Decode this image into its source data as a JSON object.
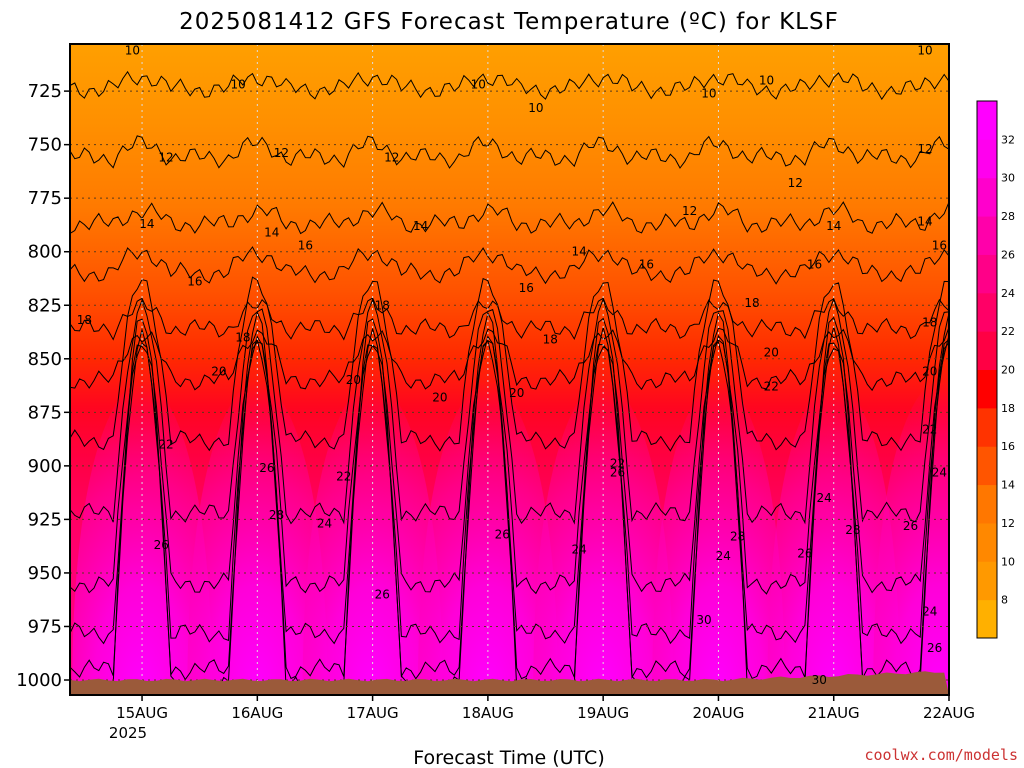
{
  "chart_data": {
    "type": "heatmap",
    "title": "2025081412 GFS Forecast Temperature (ºC) for KLSF",
    "xlabel": "Forecast Time (UTC)",
    "ylabel": "",
    "credit": "coolwx.com/models",
    "x_ticks": [
      "15AUG",
      "16AUG",
      "17AUG",
      "18AUG",
      "19AUG",
      "20AUG",
      "21AUG",
      "22AUG"
    ],
    "x_year_label": "2025",
    "x_range_hours": [
      -15,
      168
    ],
    "y_ticks": [
      725,
      750,
      775,
      800,
      825,
      850,
      875,
      900,
      925,
      950,
      975,
      1000
    ],
    "y_range_hPa": [
      703,
      1007
    ],
    "y_scale": "pressure, inverted",
    "grid": true,
    "colorbar": {
      "ticks": [
        8,
        10,
        12,
        14,
        16,
        18,
        20,
        22,
        24,
        26,
        28,
        30,
        32
      ],
      "colors": [
        "#ffb000",
        "#ff9900",
        "#ff8800",
        "#ff7700",
        "#ff5500",
        "#ff3300",
        "#ff0000",
        "#ff0044",
        "#ff0066",
        "#ff0088",
        "#ff00aa",
        "#ff00cc",
        "#ff00ee",
        "#ff00ff"
      ],
      "placement": "right"
    },
    "contour_levels": [
      10,
      12,
      14,
      16,
      18,
      20,
      22,
      24,
      26,
      28,
      30,
      32
    ],
    "contour_labels": [
      {
        "text": "10",
        "t": -2,
        "p": 706
      },
      {
        "text": "10",
        "t": 20,
        "p": 722
      },
      {
        "text": "10",
        "t": 70,
        "p": 722
      },
      {
        "text": "10",
        "t": 82,
        "p": 733
      },
      {
        "text": "10",
        "t": 118,
        "p": 726
      },
      {
        "text": "10",
        "t": 130,
        "p": 720
      },
      {
        "text": "10",
        "t": 163,
        "p": 706
      },
      {
        "text": "12",
        "t": 5,
        "p": 756
      },
      {
        "text": "12",
        "t": 29,
        "p": 754
      },
      {
        "text": "12",
        "t": 52,
        "p": 756
      },
      {
        "text": "12",
        "t": 114,
        "p": 781
      },
      {
        "text": "12",
        "t": 136,
        "p": 768
      },
      {
        "text": "12",
        "t": 163,
        "p": 752
      },
      {
        "text": "14",
        "t": 1,
        "p": 787
      },
      {
        "text": "14",
        "t": 27,
        "p": 791
      },
      {
        "text": "14",
        "t": 58,
        "p": 788
      },
      {
        "text": "14",
        "t": 91,
        "p": 800
      },
      {
        "text": "14",
        "t": 144,
        "p": 788
      },
      {
        "text": "14",
        "t": 163,
        "p": 786
      },
      {
        "text": "16",
        "t": 11,
        "p": 814
      },
      {
        "text": "16",
        "t": 34,
        "p": 797
      },
      {
        "text": "16",
        "t": 80,
        "p": 817
      },
      {
        "text": "16",
        "t": 105,
        "p": 806
      },
      {
        "text": "16",
        "t": 140,
        "p": 806
      },
      {
        "text": "16",
        "t": 166,
        "p": 797
      },
      {
        "text": "18",
        "t": -12,
        "p": 832
      },
      {
        "text": "18",
        "t": 21,
        "p": 840
      },
      {
        "text": "18",
        "t": 50,
        "p": 825
      },
      {
        "text": "18",
        "t": 85,
        "p": 841
      },
      {
        "text": "18",
        "t": 127,
        "p": 824
      },
      {
        "text": "18",
        "t": 164,
        "p": 833
      },
      {
        "text": "20",
        "t": 16,
        "p": 856
      },
      {
        "text": "20",
        "t": 44,
        "p": 860
      },
      {
        "text": "20",
        "t": 62,
        "p": 868
      },
      {
        "text": "20",
        "t": 78,
        "p": 866
      },
      {
        "text": "20",
        "t": 131,
        "p": 847
      },
      {
        "text": "20",
        "t": 164,
        "p": 856
      },
      {
        "text": "22",
        "t": 5,
        "p": 890
      },
      {
        "text": "22",
        "t": 42,
        "p": 905
      },
      {
        "text": "22",
        "t": 99,
        "p": 899
      },
      {
        "text": "22",
        "t": 131,
        "p": 863
      },
      {
        "text": "22",
        "t": 164,
        "p": 883
      },
      {
        "text": "24",
        "t": 38,
        "p": 927
      },
      {
        "text": "24",
        "t": 91,
        "p": 939
      },
      {
        "text": "24",
        "t": 121,
        "p": 942
      },
      {
        "text": "24",
        "t": 142,
        "p": 915
      },
      {
        "text": "24",
        "t": 166,
        "p": 903
      },
      {
        "text": "24",
        "t": 164,
        "p": 968
      },
      {
        "text": "26",
        "t": 4,
        "p": 937
      },
      {
        "text": "26",
        "t": 26,
        "p": 901
      },
      {
        "text": "26",
        "t": 50,
        "p": 960
      },
      {
        "text": "26",
        "t": 75,
        "p": 932
      },
      {
        "text": "26",
        "t": 99,
        "p": 903
      },
      {
        "text": "26",
        "t": 138,
        "p": 941
      },
      {
        "text": "26",
        "t": 160,
        "p": 928
      },
      {
        "text": "26",
        "t": 165,
        "p": 985
      },
      {
        "text": "28",
        "t": 28,
        "p": 923
      },
      {
        "text": "28",
        "t": 124,
        "p": 933
      },
      {
        "text": "28",
        "t": 148,
        "p": 930
      },
      {
        "text": "30",
        "t": 117,
        "p": 972
      },
      {
        "text": "30",
        "t": 141,
        "p": 1000
      }
    ],
    "daily_maxima": [
      {
        "day": "15AUG",
        "t": 0,
        "peak_temp": 32
      },
      {
        "day": "16AUG",
        "t": 24,
        "peak_temp": 32
      },
      {
        "day": "17AUG",
        "t": 48,
        "peak_temp": 32
      },
      {
        "day": "18AUG",
        "t": 72,
        "peak_temp": 32
      },
      {
        "day": "19AUG",
        "t": 96,
        "peak_temp": 32
      },
      {
        "day": "20AUG",
        "t": 120,
        "peak_temp": 31
      },
      {
        "day": "21AUG",
        "t": 144,
        "peak_temp": 31
      },
      {
        "day": "22AUG",
        "t": 166,
        "peak_temp": 31
      }
    ]
  }
}
